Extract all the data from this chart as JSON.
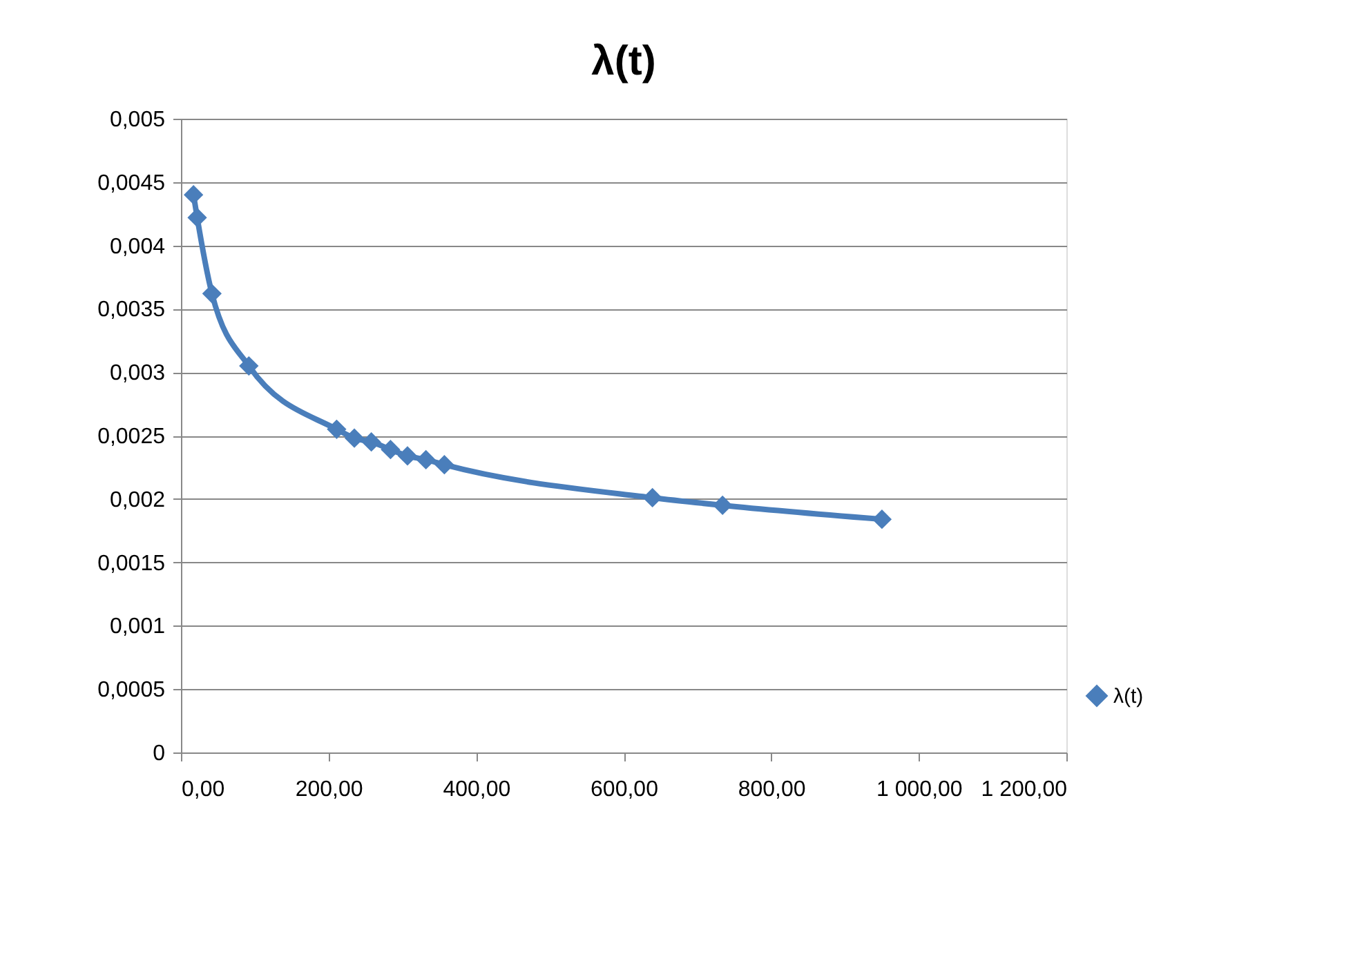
{
  "chart_data": {
    "type": "line",
    "title": "λ(t)",
    "x": [
      17,
      22,
      42,
      92,
      211,
      235,
      258,
      284,
      307,
      332,
      357,
      639,
      734,
      950
    ],
    "series": [
      {
        "name": "λ(t)",
        "color": "#4a7ebb",
        "values": [
          0.0044,
          0.00422,
          0.00362,
          0.00305,
          0.00255,
          0.00248,
          0.00245,
          0.00239,
          0.00234,
          0.00231,
          0.00227,
          0.00201,
          0.00195,
          0.00184
        ]
      }
    ],
    "xlim": [
      0,
      1200
    ],
    "xticks": [
      {
        "value": 0,
        "label": "0,00"
      },
      {
        "value": 200,
        "label": "200,00"
      },
      {
        "value": 400,
        "label": "400,00"
      },
      {
        "value": 600,
        "label": "600,00"
      },
      {
        "value": 800,
        "label": "800,00"
      },
      {
        "value": 1000,
        "label": "1 000,00"
      },
      {
        "value": 1200,
        "label": "1 200,00"
      }
    ],
    "ylim": [
      0,
      0.005
    ],
    "yticks": [
      0,
      {
        "value": 0.0005,
        "label": "0,0005"
      },
      {
        "value": 0.001,
        "label": "0,001"
      },
      {
        "value": 0.0015,
        "label": "0,0015"
      },
      {
        "value": 0.002,
        "label": "0,002"
      },
      {
        "value": 0.0025,
        "label": "0,0025"
      },
      {
        "value": 0.003,
        "label": "0,003"
      },
      {
        "value": 0.0035,
        "label": "0,0035"
      },
      {
        "value": 0.004,
        "label": "0,004"
      },
      {
        "value": 0.0045,
        "label": "0,0045"
      },
      {
        "value": 0.005,
        "label": "0,005"
      }
    ],
    "grid": "y",
    "legend": "right",
    "marker": "diamond",
    "line_style": "solid"
  }
}
